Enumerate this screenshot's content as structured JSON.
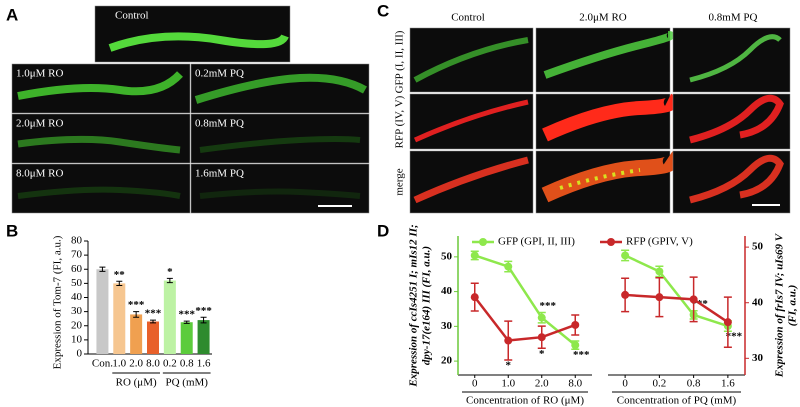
{
  "panel_a": {
    "letter": "A",
    "labels": [
      "Control",
      "1.0μM RO",
      "0.2mM PQ",
      "2.0μM RO",
      "0.8mM PQ",
      "8.0μM RO",
      "1.6mM PQ"
    ]
  },
  "panel_c": {
    "letter": "C",
    "columns": [
      "Control",
      "2.0μM RO",
      "0.8mM PQ"
    ],
    "rows": [
      "GFP (I, II, III)",
      "RFP (IV, V)",
      "merge"
    ]
  },
  "chart_data": [
    {
      "type": "bar",
      "letter": "B",
      "ylabel": "Expression of Tom-7 (FI, a.u.)",
      "categories": [
        "Con.",
        "1.0",
        "2.0",
        "8.0",
        "0.2",
        "0.8",
        "1.6"
      ],
      "values": [
        60,
        50,
        28,
        23,
        52,
        22.5,
        24
      ],
      "errors": [
        1.5,
        1.5,
        2,
        1,
        1.5,
        0.8,
        2
      ],
      "colors": [
        "#c8c8c8",
        "#f6c690",
        "#f0a050",
        "#e8602a",
        "#bdf2a4",
        "#5ccc3c",
        "#2e8b2e"
      ],
      "annotations": [
        null,
        "**",
        "***",
        "***",
        "*",
        "***",
        "***"
      ],
      "group_labels": [
        "RO (μM)",
        "PQ (mM)"
      ],
      "ylim": [
        0,
        80
      ],
      "yticks": [
        0,
        10,
        20,
        30,
        40,
        50,
        60,
        70,
        80
      ]
    },
    {
      "type": "line",
      "letter": "D",
      "ylabel": [
        "Expression of ccIs4251 I; mIs12 II;",
        "dpy-17(e164) III (FI, a.u.)"
      ],
      "xlabel": "Concentration of RO (μM)",
      "categories": [
        "0",
        "1.0",
        "2.0",
        "8.0"
      ],
      "series": [
        {
          "name": "GFP (GPI, II, III)",
          "color": "#8ee84c",
          "values": [
            50.4,
            47.2,
            32.5,
            24.6
          ],
          "errors": [
            1.2,
            1.5,
            1.5,
            1.2
          ],
          "annotations": [
            null,
            null,
            "***",
            "***"
          ]
        },
        {
          "name": "RFP (GPIV, V)",
          "color": "#c8282a",
          "axis": "y2",
          "values": [
            41,
            33.2,
            33.8,
            36
          ],
          "errors": [
            2.5,
            3.5,
            2,
            1.8
          ],
          "annotations": [
            null,
            "*",
            "*",
            null
          ]
        }
      ],
      "ylim": [
        16,
        56
      ],
      "yticks": [
        20,
        30,
        40,
        50
      ],
      "y2lim": [
        27,
        52
      ]
    },
    {
      "type": "line",
      "y2label": [
        "Expression of frIs7 IV; uIs69 V",
        "(FI, a.u.)"
      ],
      "xlabel": "Concentration of PQ (mM)",
      "categories": [
        "0",
        "0.2",
        "0.8",
        "1.6"
      ],
      "series": [
        {
          "color": "#8ee84c",
          "values": [
            50.4,
            45.8,
            33.3,
            30.1
          ],
          "errors": [
            1.5,
            1.5,
            1.2,
            1.5
          ],
          "annotations": [
            null,
            null,
            "***",
            "***"
          ]
        },
        {
          "color": "#c8282a",
          "axis": "y2",
          "values": [
            41.4,
            41,
            40.6,
            36.5
          ],
          "errors": [
            3,
            3.5,
            4,
            4.5
          ]
        }
      ],
      "ylim": [
        16,
        56
      ],
      "y2lim": [
        27,
        52
      ],
      "y2ticks": [
        30,
        40,
        50
      ]
    }
  ]
}
